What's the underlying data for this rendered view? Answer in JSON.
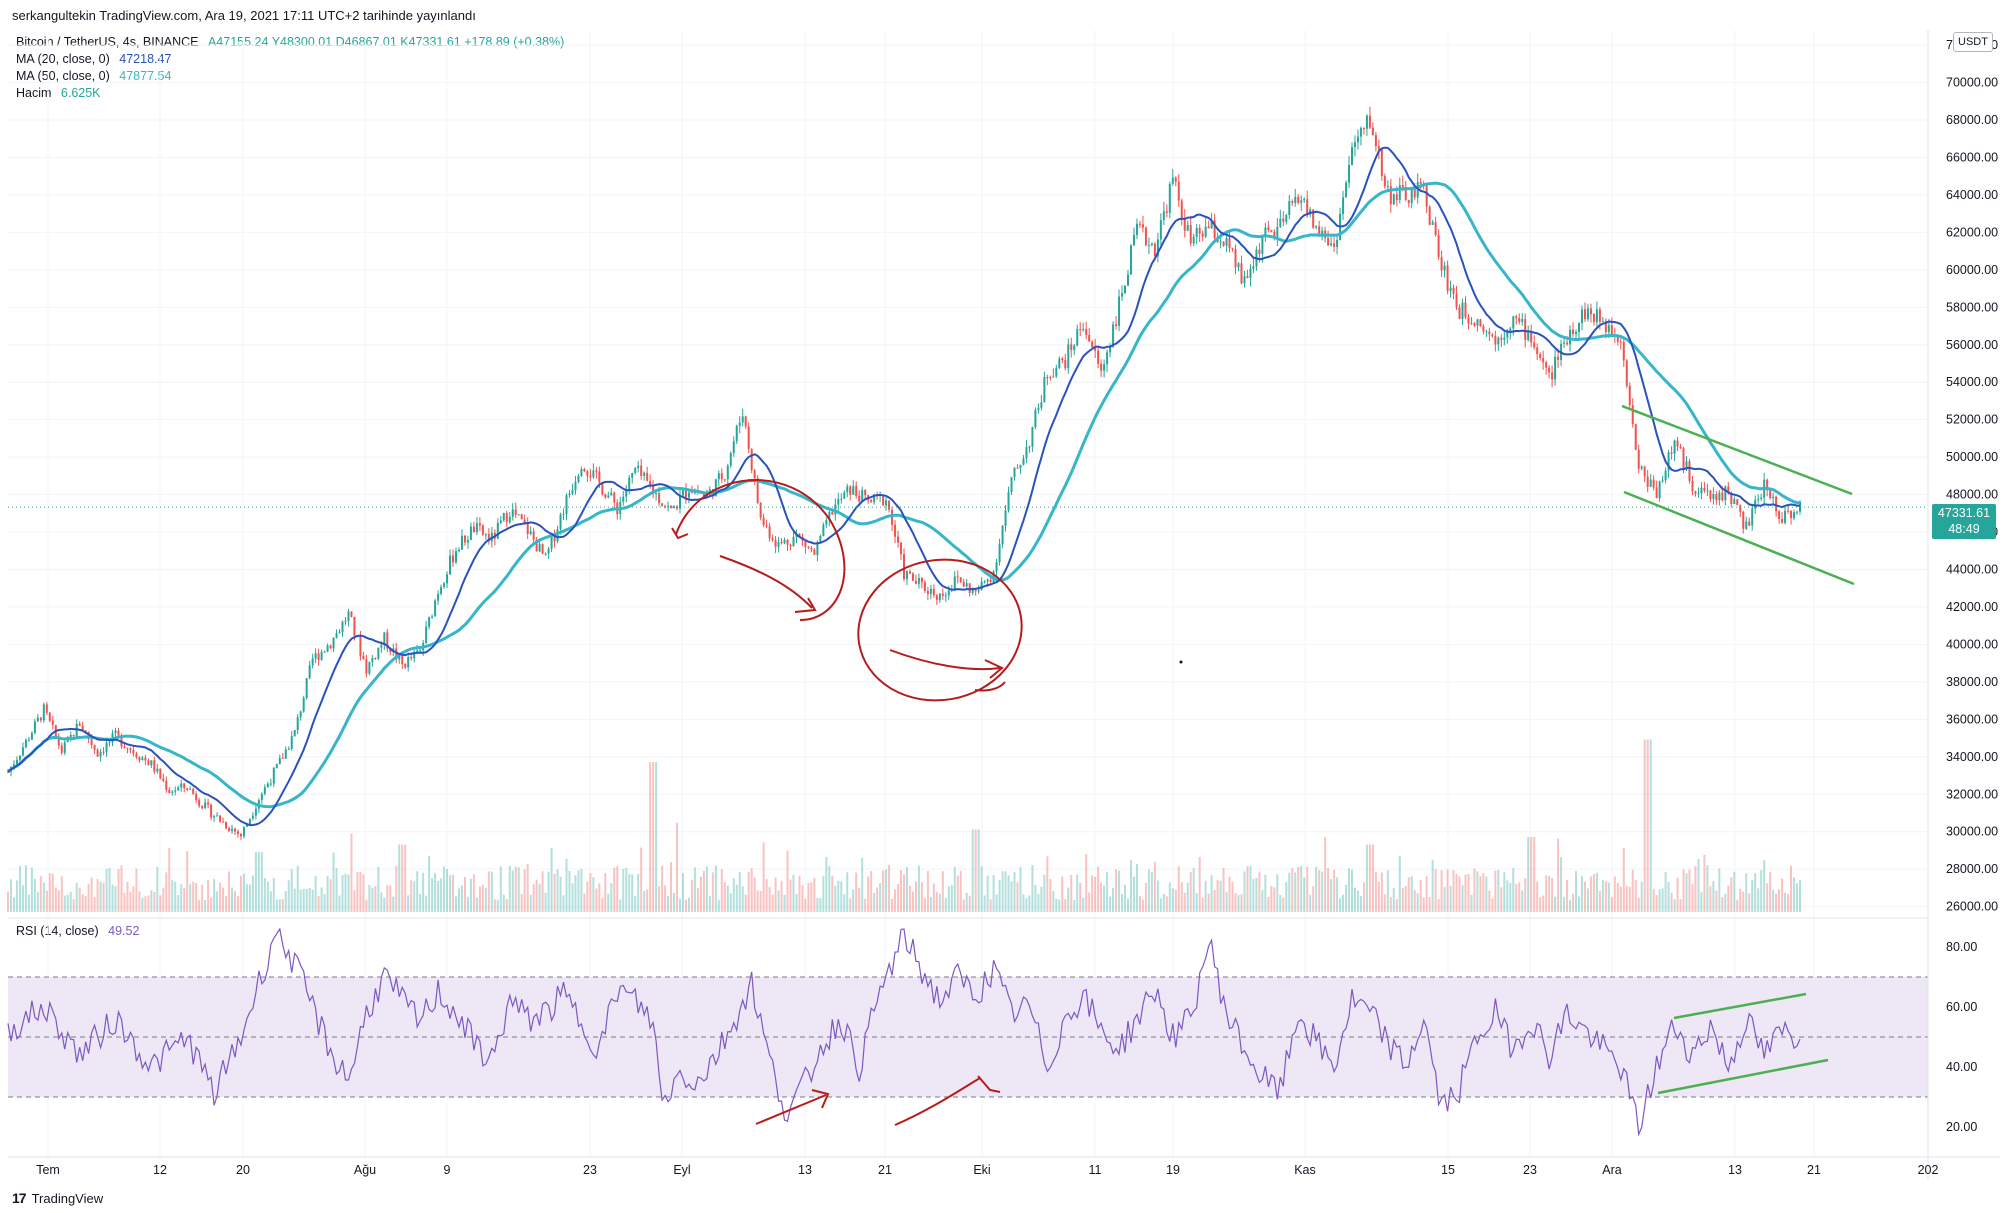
{
  "publisher_line": "serkangultekin TradingView.com, Ara 19, 2021 17:11 UTC+2 tarihinde yayınlandı",
  "legend": {
    "symbol": "Bitcoin / TetherUS, 4s, BINANCE",
    "ohlc": "A47155.24  Y48300.01  D46867.01  K47331.61  +178.89 (+0.38%)",
    "ma20_label": "MA (20, close, 0)",
    "ma20_value": "47218.47",
    "ma50_label": "MA (50, close, 0)",
    "ma50_value": "47877.54",
    "volume_label": "Hacim",
    "volume_value": "6.625K",
    "rsi_label": "RSI (14, close)",
    "rsi_value": "49.52"
  },
  "currency_badge": "USDT",
  "last_price": {
    "price": "47331.61",
    "countdown": "48:49"
  },
  "branding": "TradingView",
  "colors": {
    "up": "#26a69a",
    "down": "#ef5350",
    "ma20": "#2a52be",
    "ma50": "#36b6c8",
    "rsi": "#7e57c2",
    "rsi_band": "#ede7f6",
    "annotation_red": "#b71c1c",
    "annotation_green": "#4caf50"
  },
  "chart_data": {
    "type": "candlestick",
    "symbol": "BTCUSDT",
    "interval": "4s",
    "price_axis": {
      "ticks": [
        "26000.00",
        "28000.00",
        "30000.00",
        "32000.00",
        "34000.00",
        "36000.00",
        "38000.00",
        "40000.00",
        "42000.00",
        "44000.00",
        "46000.00",
        "48000.00",
        "50000.00",
        "52000.00",
        "54000.00",
        "56000.00",
        "58000.00",
        "60000.00",
        "62000.00",
        "64000.00",
        "66000.00",
        "68000.00",
        "70000.00",
        "72000.00"
      ],
      "ylim": [
        25500,
        72700
      ]
    },
    "time_axis": {
      "ticks": [
        "Tem",
        "12",
        "20",
        "Ağu",
        "9",
        "23",
        "Eyl",
        "13",
        "21",
        "Eki",
        "11",
        "19",
        "Kas",
        "15",
        "23",
        "Ara",
        "13",
        "21",
        "202"
      ]
    },
    "price_path": [
      [
        0,
        33200
      ],
      [
        2,
        34800
      ],
      [
        4,
        36500
      ],
      [
        6,
        34300
      ],
      [
        8,
        35800
      ],
      [
        10,
        34200
      ],
      [
        12,
        35100
      ],
      [
        14,
        34300
      ],
      [
        16,
        33600
      ],
      [
        18,
        32200
      ],
      [
        20,
        32400
      ],
      [
        22,
        31300
      ],
      [
        24,
        30500
      ],
      [
        26,
        29800
      ],
      [
        28,
        31800
      ],
      [
        30,
        33400
      ],
      [
        32,
        35300
      ],
      [
        34,
        39200
      ],
      [
        36,
        40100
      ],
      [
        38,
        41600
      ],
      [
        40,
        38700
      ],
      [
        42,
        40300
      ],
      [
        44,
        38900
      ],
      [
        46,
        39600
      ],
      [
        48,
        42900
      ],
      [
        50,
        45100
      ],
      [
        52,
        46200
      ],
      [
        54,
        45600
      ],
      [
        56,
        47200
      ],
      [
        58,
        46100
      ],
      [
        60,
        44500
      ],
      [
        62,
        47300
      ],
      [
        64,
        49800
      ],
      [
        66,
        48600
      ],
      [
        68,
        47300
      ],
      [
        70,
        49300
      ],
      [
        72,
        48200
      ],
      [
        74,
        47100
      ],
      [
        76,
        48400
      ],
      [
        78,
        47900
      ],
      [
        80,
        49200
      ],
      [
        82,
        52500
      ],
      [
        84,
        46700
      ],
      [
        86,
        45300
      ],
      [
        88,
        45800
      ],
      [
        90,
        44800
      ],
      [
        92,
        47200
      ],
      [
        94,
        48300
      ],
      [
        96,
        47600
      ],
      [
        98,
        47800
      ],
      [
        100,
        43800
      ],
      [
        102,
        43100
      ],
      [
        104,
        42600
      ],
      [
        106,
        43500
      ],
      [
        108,
        42700
      ],
      [
        110,
        43900
      ],
      [
        112,
        48700
      ],
      [
        114,
        50900
      ],
      [
        116,
        54500
      ],
      [
        118,
        55200
      ],
      [
        120,
        57200
      ],
      [
        122,
        54500
      ],
      [
        124,
        58100
      ],
      [
        126,
        62100
      ],
      [
        128,
        61200
      ],
      [
        130,
        64800
      ],
      [
        132,
        61400
      ],
      [
        134,
        62300
      ],
      [
        136,
        61300
      ],
      [
        138,
        59200
      ],
      [
        140,
        61700
      ],
      [
        142,
        62200
      ],
      [
        144,
        64100
      ],
      [
        146,
        62200
      ],
      [
        148,
        61200
      ],
      [
        150,
        66400
      ],
      [
        152,
        68000
      ],
      [
        154,
        64100
      ],
      [
        156,
        63900
      ],
      [
        158,
        64300
      ],
      [
        160,
        60200
      ],
      [
        162,
        57800
      ],
      [
        164,
        57400
      ],
      [
        166,
        56200
      ],
      [
        168,
        57400
      ],
      [
        170,
        56400
      ],
      [
        172,
        54200
      ],
      [
        174,
        56500
      ],
      [
        176,
        57800
      ],
      [
        178,
        57200
      ],
      [
        180,
        56500
      ],
      [
        182,
        49400
      ],
      [
        184,
        48200
      ],
      [
        186,
        50800
      ],
      [
        188,
        48600
      ],
      [
        190,
        47800
      ],
      [
        192,
        48200
      ],
      [
        194,
        46200
      ],
      [
        196,
        48500
      ],
      [
        198,
        46800
      ],
      [
        200,
        47331
      ]
    ],
    "ma20_last": 47218.47,
    "ma50_last": 47877.54,
    "volume_last": "6.625K",
    "volume_spikes": [
      [
        72,
        1.0
      ],
      [
        183,
        1.15
      ],
      [
        108,
        0.55
      ],
      [
        152,
        0.45
      ],
      [
        170,
        0.5
      ],
      [
        44,
        0.45
      ],
      [
        28,
        0.4
      ]
    ],
    "rsi": {
      "period": 14,
      "last": 49.52,
      "axis_ticks": [
        "20.00",
        "40.00",
        "60.00",
        "80.00"
      ],
      "ylim": [
        13,
        87
      ],
      "upper_band": 70,
      "lower_band": 30,
      "path": [
        [
          0,
          52
        ],
        [
          4,
          60
        ],
        [
          8,
          44
        ],
        [
          12,
          56
        ],
        [
          16,
          40
        ],
        [
          20,
          50
        ],
        [
          23,
          31
        ],
        [
          26,
          50
        ],
        [
          28,
          68
        ],
        [
          30,
          86
        ],
        [
          32,
          74
        ],
        [
          34,
          60
        ],
        [
          36,
          45
        ],
        [
          38,
          36
        ],
        [
          40,
          58
        ],
        [
          42,
          70
        ],
        [
          44,
          62
        ],
        [
          46,
          55
        ],
        [
          48,
          65
        ],
        [
          50,
          58
        ],
        [
          52,
          48
        ],
        [
          54,
          42
        ],
        [
          56,
          62
        ],
        [
          58,
          56
        ],
        [
          60,
          58
        ],
        [
          62,
          64
        ],
        [
          64,
          55
        ],
        [
          66,
          46
        ],
        [
          68,
          66
        ],
        [
          70,
          62
        ],
        [
          72,
          55
        ],
        [
          73,
          28
        ],
        [
          75,
          38
        ],
        [
          77,
          35
        ],
        [
          79,
          44
        ],
        [
          81,
          55
        ],
        [
          83,
          68
        ],
        [
          85,
          42
        ],
        [
          87,
          24
        ],
        [
          89,
          35
        ],
        [
          91,
          48
        ],
        [
          93,
          56
        ],
        [
          95,
          40
        ],
        [
          97,
          62
        ],
        [
          100,
          84
        ],
        [
          102,
          72
        ],
        [
          104,
          62
        ],
        [
          106,
          70
        ],
        [
          108,
          64
        ],
        [
          110,
          72
        ],
        [
          112,
          58
        ],
        [
          114,
          60
        ],
        [
          116,
          40
        ],
        [
          118,
          56
        ],
        [
          120,
          64
        ],
        [
          122,
          52
        ],
        [
          124,
          46
        ],
        [
          126,
          56
        ],
        [
          128,
          66
        ],
        [
          130,
          50
        ],
        [
          132,
          56
        ],
        [
          134,
          82
        ],
        [
          136,
          58
        ],
        [
          138,
          46
        ],
        [
          140,
          36
        ],
        [
          142,
          32
        ],
        [
          144,
          58
        ],
        [
          146,
          48
        ],
        [
          148,
          40
        ],
        [
          150,
          62
        ],
        [
          152,
          58
        ],
        [
          154,
          48
        ],
        [
          156,
          40
        ],
        [
          158,
          56
        ],
        [
          160,
          26
        ],
        [
          162,
          33
        ],
        [
          164,
          50
        ],
        [
          166,
          58
        ],
        [
          168,
          46
        ],
        [
          170,
          56
        ],
        [
          172,
          44
        ],
        [
          174,
          58
        ],
        [
          176,
          52
        ],
        [
          178,
          46
        ],
        [
          180,
          40
        ],
        [
          182,
          20
        ],
        [
          184,
          40
        ],
        [
          186,
          54
        ],
        [
          188,
          44
        ],
        [
          190,
          54
        ],
        [
          192,
          40
        ],
        [
          194,
          56
        ],
        [
          196,
          44
        ],
        [
          198,
          52
        ],
        [
          200,
          49.5
        ]
      ]
    },
    "annotations": {
      "price_channel": "descending (green lines)",
      "rsi_channel": "ascending (green lines)",
      "red_circles": 2
    }
  }
}
